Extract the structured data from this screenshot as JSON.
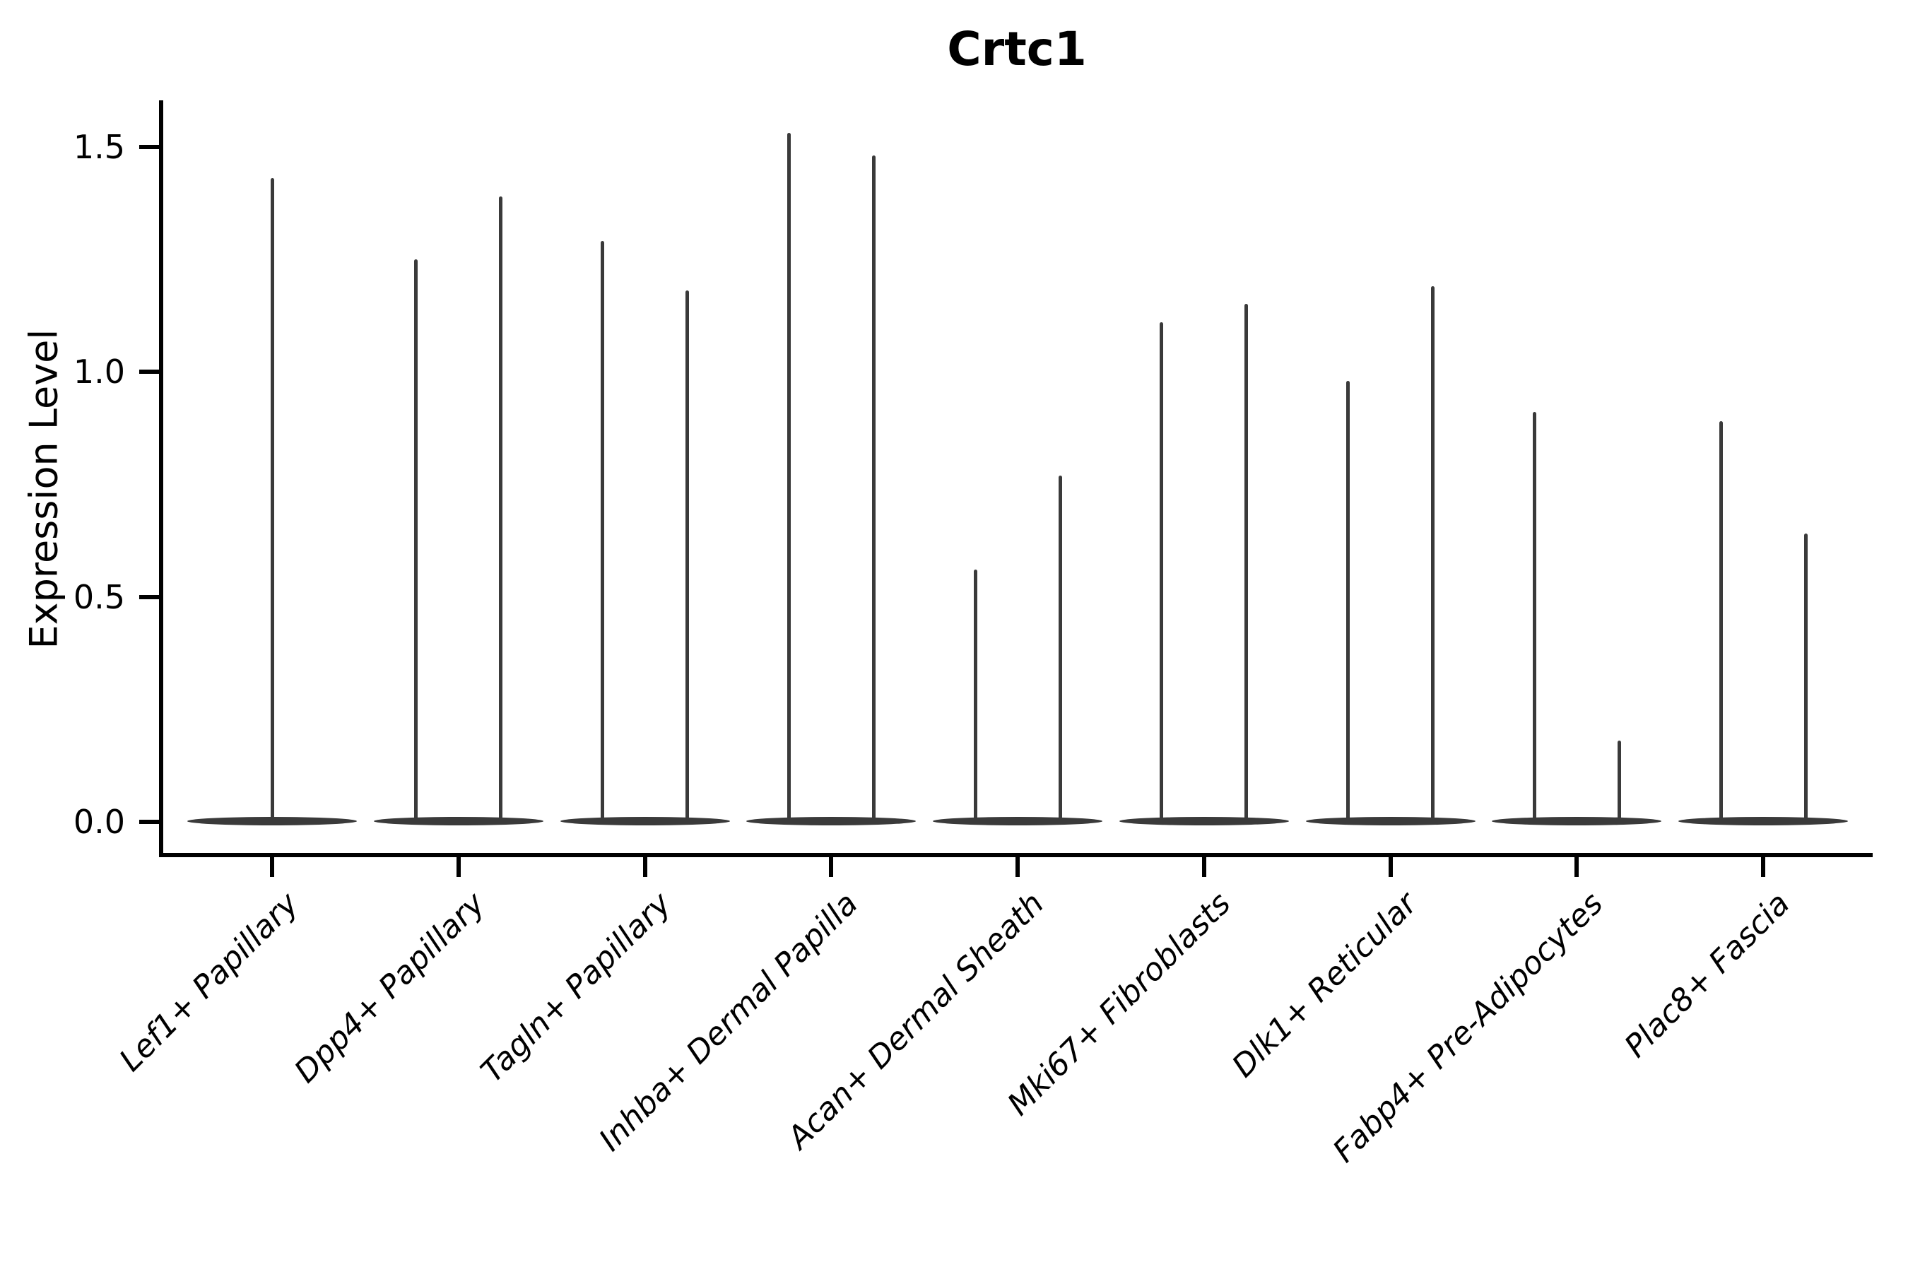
{
  "chart_data": {
    "type": "violin",
    "title": "Crtc1",
    "xlabel": "",
    "ylabel": "Expression Level",
    "ylim": [
      -0.08,
      1.66
    ],
    "grid": false,
    "legend_position": "none",
    "y_ticks": [
      {
        "label": "1.5",
        "value": 1.5
      },
      {
        "label": "1.0",
        "value": 1.0
      },
      {
        "label": "0.5",
        "value": 0.5
      },
      {
        "label": "0.0",
        "value": 0.0
      }
    ],
    "categories": [
      "Lef1+ Papillary",
      "Dpp4+ Papillary",
      "Tagln+ Papillary",
      "Inhba+ Dermal Papilla",
      "Acan+ Dermal Sheath",
      "Mki67+ Fibroblasts",
      "Dlk1+ Reticular",
      "Fabp4+ Pre-Adipocytes",
      "Plac8+ Fascia"
    ],
    "violins": [
      {
        "category": "Lef1+ Papillary",
        "maxima": [
          1.43
        ]
      },
      {
        "category": "Dpp4+ Papillary",
        "maxima": [
          1.25,
          1.39
        ]
      },
      {
        "category": "Tagln+ Papillary",
        "maxima": [
          1.29,
          1.18
        ]
      },
      {
        "category": "Inhba+ Dermal Papilla",
        "maxima": [
          1.53,
          1.48
        ]
      },
      {
        "category": "Acan+ Dermal Sheath",
        "maxima": [
          0.56,
          0.77
        ]
      },
      {
        "category": "Mki67+ Fibroblasts",
        "maxima": [
          1.11,
          1.15
        ]
      },
      {
        "category": "Dlk1+ Reticular",
        "maxima": [
          0.98,
          1.19
        ]
      },
      {
        "category": "Fabp4+ Pre-Adipocytes",
        "maxima": [
          0.91,
          0.18
        ]
      },
      {
        "category": "Plac8+ Fascia",
        "maxima": [
          0.89,
          0.64
        ]
      }
    ],
    "distribution_note": "each violin's mass is concentrated at 0 (flat tapered body on the baseline) with a thin upper tail reaching its maximum",
    "colors": {
      "violin": "#3a3a3a",
      "axis": "#000000",
      "background": "#ffffff"
    }
  }
}
